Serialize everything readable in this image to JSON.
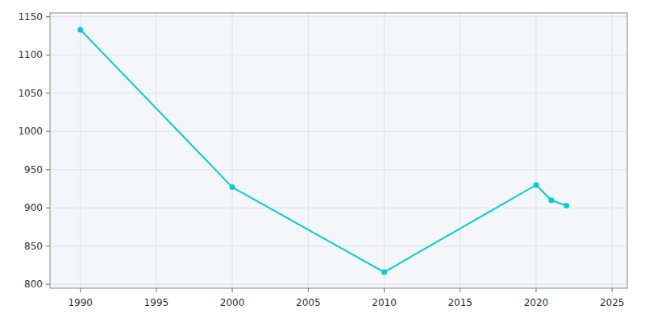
{
  "chart_data": {
    "type": "line",
    "x": [
      1990,
      2000,
      2010,
      2020,
      2021,
      2022
    ],
    "values": [
      1133,
      927,
      816,
      930,
      910,
      903
    ],
    "color": "#00CED1",
    "marker": "circle",
    "xlim": [
      1988,
      2026
    ],
    "ylim": [
      795,
      1155
    ],
    "xticks": [
      1990,
      1995,
      2000,
      2005,
      2010,
      2015,
      2020,
      2025
    ],
    "yticks": [
      800,
      850,
      900,
      950,
      1000,
      1050,
      1100,
      1150
    ],
    "grid": true
  }
}
